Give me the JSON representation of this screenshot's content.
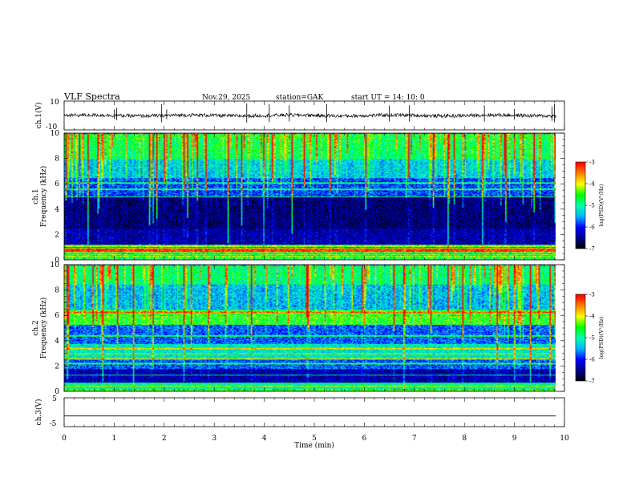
{
  "header": {
    "title": "VLF Spectra",
    "date": "Nov.29, 2025",
    "station": "station=GAK",
    "start": "start  UT =   14: 10: 0"
  },
  "chart_data": [
    {
      "id": "waveform-ch1",
      "type": "line",
      "ylabel": "ch.1(V)",
      "ylim": [
        -10,
        10
      ],
      "y_tick_labels": [
        "10",
        "-10"
      ],
      "xlim": [
        0,
        10
      ],
      "data_end_min": 9.83,
      "baseline": 0.0,
      "noise_amplitude": 1.2,
      "spike_times_min": [
        1.0,
        1.05,
        1.95,
        2.05,
        3.65,
        4.1,
        4.5,
        5.25,
        6.5,
        6.9,
        8.4,
        9.0,
        9.75,
        9.8
      ]
    },
    {
      "id": "spectrogram-ch1",
      "type": "heatmap",
      "ylabel_channel": "ch.1",
      "ylabel": "Frequency (kHz)",
      "ylim": [
        0,
        10
      ],
      "y_ticks": [
        "0",
        "2",
        "4",
        "6",
        "8",
        "10"
      ],
      "xlim": [
        0,
        10
      ],
      "data_end_min": 9.83,
      "band_levels_log": [
        {
          "f": [
            0.0,
            0.15
          ],
          "level": -4.6
        },
        {
          "f": [
            0.15,
            0.6
          ],
          "level": -5.3
        },
        {
          "f": [
            0.6,
            1.2
          ],
          "level": -4.3
        },
        {
          "f": [
            1.2,
            2.5
          ],
          "level": -6.4
        },
        {
          "f": [
            2.5,
            5.0
          ],
          "level": -6.6
        },
        {
          "f": [
            5.0,
            6.5
          ],
          "level": -5.9
        },
        {
          "f": [
            6.5,
            8.0
          ],
          "level": -5.4
        },
        {
          "f": [
            8.0,
            9.5
          ],
          "level": -4.9
        },
        {
          "f": [
            9.5,
            10.0
          ],
          "level": -4.8
        }
      ],
      "line_frequencies_khz": [
        0.3,
        0.45,
        0.7,
        0.85,
        1.0,
        5.0,
        5.6,
        6.1
      ]
    },
    {
      "id": "spectrogram-ch2",
      "type": "heatmap",
      "ylabel_channel": "ch.2",
      "ylabel": "Frequency (kHz)",
      "ylim": [
        0,
        10
      ],
      "y_ticks": [
        "0",
        "2",
        "4",
        "6",
        "8",
        "10"
      ],
      "xlim": [
        0,
        10
      ],
      "data_end_min": 9.83,
      "band_levels_log": [
        {
          "f": [
            0.0,
            0.25
          ],
          "level": -4.6
        },
        {
          "f": [
            0.25,
            0.7
          ],
          "level": -5.0
        },
        {
          "f": [
            0.7,
            1.8
          ],
          "level": -6.4
        },
        {
          "f": [
            1.8,
            2.6
          ],
          "level": -5.8
        },
        {
          "f": [
            2.6,
            3.8
          ],
          "level": -5.2
        },
        {
          "f": [
            3.8,
            5.3
          ],
          "level": -5.8
        },
        {
          "f": [
            5.3,
            6.5
          ],
          "level": -4.6
        },
        {
          "f": [
            6.5,
            8.5
          ],
          "level": -5.5
        },
        {
          "f": [
            8.5,
            10.0
          ],
          "level": -5.0
        }
      ],
      "line_frequencies_khz": [
        0.2,
        0.45,
        1.3,
        2.2,
        2.6,
        3.0,
        3.4,
        4.4,
        6.0,
        6.3
      ]
    },
    {
      "id": "waveform-ch3",
      "type": "line",
      "ylabel": "ch.3(V)",
      "ylim": [
        -5,
        5
      ],
      "y_tick_labels": [
        "5",
        "-5"
      ],
      "xlim": [
        0,
        10
      ],
      "data_end_min": 9.83,
      "baseline": -1.3,
      "noise_amplitude": 0.0,
      "spike_times_min": []
    }
  ],
  "colorbars": [
    {
      "id": "colorbar-ch1",
      "label": "log(PSD)(V²/Hz)",
      "ticks": [
        "-3",
        "-4",
        "-5",
        "-6",
        "-7"
      ],
      "range": [
        -7,
        -3
      ]
    },
    {
      "id": "colorbar-ch2",
      "label": "log(PSD)(V²/Hz)",
      "ticks": [
        "-3",
        "-4",
        "-5",
        "-6",
        "-7"
      ],
      "range": [
        -7,
        -3
      ]
    }
  ],
  "xaxis": {
    "label": "Time  (min)",
    "ticks": [
      "0",
      "1",
      "2",
      "3",
      "4",
      "5",
      "6",
      "7",
      "8",
      "9",
      "10"
    ],
    "range": [
      0,
      10
    ]
  },
  "colors": {
    "axis": "#000000",
    "trace": "#000000",
    "colormap": [
      "#000000",
      "#00008c",
      "#0000ff",
      "#00b4ff",
      "#00ffb4",
      "#00ff00",
      "#ffff00",
      "#ff8000",
      "#ff0000",
      "#ffffff"
    ]
  }
}
